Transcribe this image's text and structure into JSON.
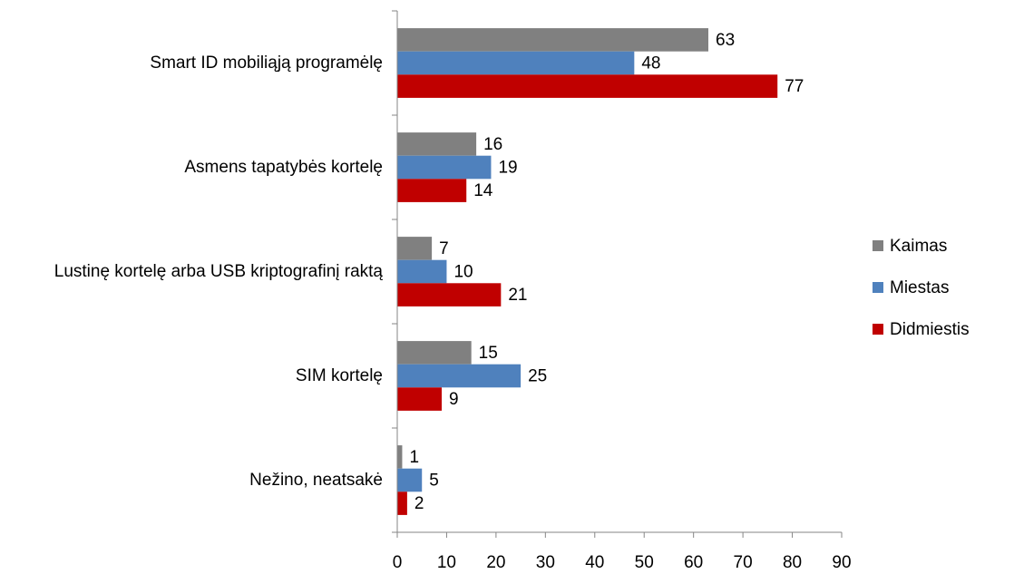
{
  "chart_data": {
    "type": "barh",
    "categories": [
      "Smart ID mobiliąją programėlę",
      "Asmens tapatybės kortelę",
      "Lustinę kortelę arba USB kriptografinį raktą",
      "SIM kortelę",
      "Nežino, neatsakė"
    ],
    "series": [
      {
        "name": "Kaimas",
        "color": "#808080",
        "values": [
          63,
          16,
          7,
          15,
          1
        ]
      },
      {
        "name": "Miestas",
        "color": "#4f81bd",
        "values": [
          48,
          19,
          10,
          25,
          5
        ]
      },
      {
        "name": "Didmiestis",
        "color": "#c00000",
        "values": [
          77,
          14,
          21,
          9,
          2
        ]
      }
    ],
    "xlim": [
      0,
      90
    ],
    "xticks": [
      0,
      10,
      20,
      30,
      40,
      50,
      60,
      70,
      80,
      90
    ],
    "legend": "right"
  }
}
